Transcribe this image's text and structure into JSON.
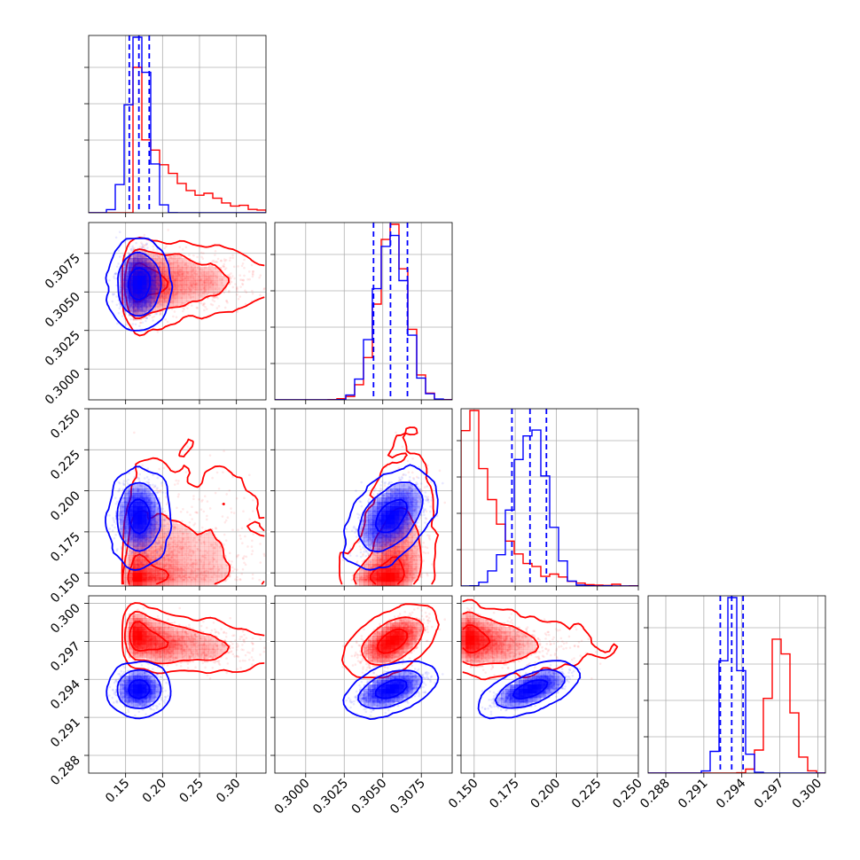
{
  "chart_data": {
    "type": "corner",
    "parameters": 4,
    "grid": true,
    "colors": {
      "series_a": "#ff0000",
      "series_b": "#0000ff"
    },
    "axes": [
      {
        "lim": [
          0.1,
          0.34
        ],
        "ticks": [
          0.15,
          0.2,
          0.25,
          0.3
        ],
        "ticklabels": [
          "0.15",
          "0.20",
          "0.25",
          "0.30"
        ]
      },
      {
        "lim": [
          0.298,
          0.3095
        ],
        "ticks": [
          0.3,
          0.3025,
          0.305,
          0.3075
        ],
        "ticklabels": [
          "0.3000",
          "0.3025",
          "0.3050",
          "0.3075"
        ]
      },
      {
        "lim": [
          0.142,
          0.25
        ],
        "ticks": [
          0.15,
          0.175,
          0.2,
          0.225,
          0.25
        ],
        "ticklabels": [
          "0.150",
          "0.175",
          "0.200",
          "0.225",
          "0.250"
        ]
      },
      {
        "lim": [
          0.2866,
          0.3006
        ],
        "ticks": [
          0.288,
          0.291,
          0.294,
          0.297,
          0.3
        ],
        "ticklabels": [
          "0.288",
          "0.291",
          "0.294",
          "0.297",
          "0.300"
        ]
      }
    ],
    "series": [
      {
        "color": "#ff0000",
        "means": [
          0.205,
          0.3056,
          0.16,
          0.297
        ],
        "sds": [
          0.042,
          0.00095,
          0.014,
          0.00085
        ],
        "corr": [
          [
            1,
            0.1,
            0.4,
            -0.5
          ],
          [
            0.1,
            1,
            0.45,
            0.65
          ],
          [
            0.4,
            0.45,
            1,
            -0.45
          ],
          [
            -0.5,
            0.65,
            -0.45,
            1
          ]
        ],
        "hist_hint": "right-skewed"
      },
      {
        "color": "#0000ff",
        "means": [
          0.168,
          0.3055,
          0.184,
          0.2932
        ],
        "sds": [
          0.013,
          0.00095,
          0.01,
          0.00065
        ],
        "corr": [
          [
            1,
            0.0,
            0.0,
            0.0
          ],
          [
            0.0,
            1,
            0.55,
            0.6
          ],
          [
            0.0,
            0.55,
            1,
            0.55
          ],
          [
            0.0,
            0.6,
            0.55,
            1
          ]
        ],
        "quantiles": [
          [
            0.155,
            0.168,
            0.182
          ],
          [
            0.3044,
            0.3055,
            0.3066
          ],
          [
            0.173,
            0.184,
            0.194
          ],
          [
            0.2923,
            0.2932,
            0.2941
          ]
        ]
      }
    ]
  }
}
